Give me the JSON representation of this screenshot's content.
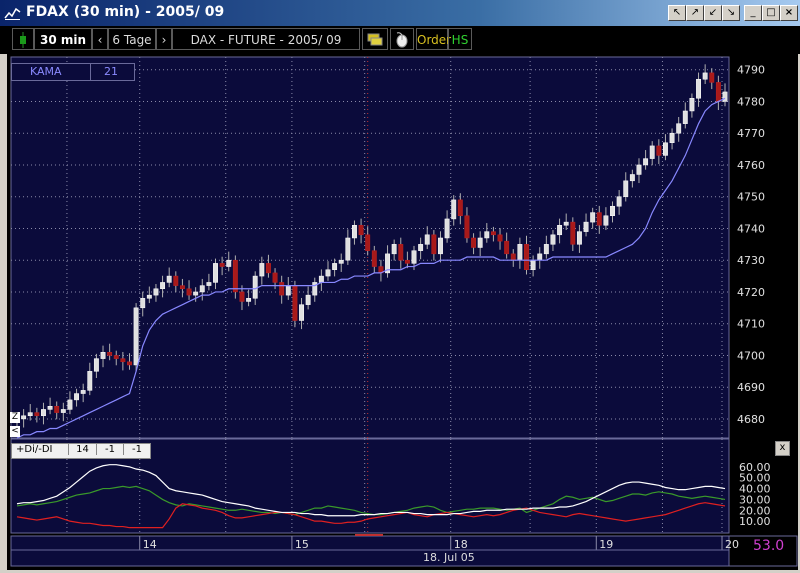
{
  "window": {
    "title": "FDAX  (30 min) - 2005/ 09",
    "buttons": [
      "↖",
      "↗",
      "↙",
      "↘",
      "_",
      "□",
      "×"
    ]
  },
  "toolbar": {
    "timeframe": "30 min",
    "prev": "‹",
    "range": "6 Tage",
    "next": "›",
    "instrument": "DAX - FUTURE - 2005/ 09",
    "order_label": "Order",
    "hs_label": "HS"
  },
  "indicator_box": {
    "name": "KAMA",
    "period": "21"
  },
  "lower_box": {
    "name": "+Di/-DI",
    "p1": "14",
    "p2": "-1",
    "p3": "-1"
  },
  "lower_close": "x",
  "left_tools": [
    "Z",
    "<"
  ],
  "price_axis": [
    "4790",
    "4780",
    "4770",
    "4760",
    "4750",
    "4740",
    "4730",
    "4720",
    "4710",
    "4700",
    "4690",
    "4680"
  ],
  "dmi_axis": [
    "60.00",
    "50.00",
    "40.00",
    "30.00",
    "20.00",
    "10.00"
  ],
  "x_labels": [
    "14",
    "15",
    "18",
    "19",
    "20"
  ],
  "date_label": "18. Jul 05",
  "value_readout": "53.0",
  "colors": {
    "background": "#0b0b3b",
    "grid": "#8a8aa8",
    "day_line": "#c03030",
    "up_candle": "#e0e0e0",
    "down_candle": "#a81a1a",
    "kama": "#8888ff",
    "plus_di": "#3a9a2a",
    "minus_di": "#e02020",
    "adx": "#ffffff",
    "readout": "#d040d0"
  },
  "chart_data": {
    "type": "candlestick",
    "price": {
      "ylim": [
        4674,
        4794
      ],
      "close": [
        4680,
        4681,
        4682,
        4681,
        4683,
        4684,
        4682,
        4683,
        4686,
        4688,
        4689,
        4695,
        4699,
        4701,
        4700,
        4699,
        4698,
        4697,
        4715,
        4718,
        4719,
        4721,
        4723,
        4725,
        4722,
        4721,
        4719,
        4720,
        4722,
        4723,
        4729,
        4728,
        4730,
        4720,
        4717,
        4718,
        4725,
        4729,
        4726,
        4723,
        4719,
        4722,
        4711,
        4716,
        4719,
        4723,
        4725,
        4727,
        4729,
        4730,
        4737,
        4741,
        4738,
        4733,
        4728,
        4726,
        4732,
        4735,
        4730,
        4729,
        4733,
        4735,
        4738,
        4732,
        4737,
        4743,
        4749,
        4744,
        4737,
        4734,
        4737,
        4739,
        4738,
        4736,
        4732,
        4730,
        4735,
        4727,
        4730,
        4732,
        4735,
        4738,
        4741,
        4742,
        4735,
        4739,
        4742,
        4745,
        4741,
        4744,
        4747,
        4750,
        4755,
        4757,
        4760,
        4762,
        4766,
        4763,
        4767,
        4770,
        4773,
        4777,
        4781,
        4787,
        4789,
        4786,
        4780,
        4783
      ],
      "kama": [
        4674,
        4675,
        4675,
        4676,
        4676,
        4677,
        4677,
        4678,
        4679,
        4680,
        4681,
        4682,
        4683,
        4684,
        4685,
        4686,
        4687,
        4688,
        4695,
        4703,
        4708,
        4711,
        4713,
        4714,
        4715,
        4716,
        4717,
        4718,
        4719,
        4719,
        4720,
        4720,
        4721,
        4721,
        4721,
        4721,
        4721,
        4722,
        4722,
        4722,
        4722,
        4722,
        4722,
        4722,
        4722,
        4722,
        4723,
        4723,
        4723,
        4724,
        4724,
        4725,
        4725,
        4725,
        4726,
        4726,
        4727,
        4727,
        4727,
        4728,
        4728,
        4729,
        4729,
        4729,
        4730,
        4730,
        4730,
        4730,
        4731,
        4731,
        4731,
        4731,
        4731,
        4730,
        4730,
        4730,
        4730,
        4730,
        4730,
        4730,
        4730,
        4731,
        4731,
        4731,
        4731,
        4731,
        4731,
        4731,
        4731,
        4731,
        4732,
        4733,
        4734,
        4735,
        4737,
        4740,
        4745,
        4749,
        4752,
        4755,
        4759,
        4763,
        4768,
        4773,
        4777,
        4779,
        4780,
        4781
      ]
    },
    "dmi": {
      "ylim": [
        0,
        70
      ],
      "adx": [
        26,
        27,
        27,
        28,
        29,
        31,
        33,
        37,
        41,
        46,
        51,
        56,
        59,
        61,
        62,
        62,
        61,
        60,
        58,
        57,
        55,
        52,
        46,
        40,
        38,
        37,
        36,
        35,
        34,
        32,
        30,
        28,
        27,
        26,
        25,
        24,
        22,
        21,
        20,
        19,
        18,
        18,
        18,
        17,
        17,
        16,
        16,
        15,
        15,
        15,
        15,
        15,
        16,
        16,
        16,
        17,
        17,
        18,
        18,
        18,
        17,
        17,
        16,
        16,
        16,
        16,
        17,
        17,
        18,
        19,
        19,
        20,
        20,
        20,
        21,
        21,
        21,
        21,
        22,
        22,
        22,
        22,
        23,
        23,
        24,
        26,
        28,
        31,
        34,
        37,
        40,
        43,
        45,
        46,
        46,
        45,
        44,
        43,
        41,
        40,
        39,
        39,
        40,
        41,
        42,
        42,
        41,
        40
      ],
      "plus_di": [
        24,
        25,
        26,
        25,
        26,
        27,
        28,
        30,
        32,
        34,
        35,
        36,
        38,
        40,
        40,
        41,
        42,
        41,
        42,
        40,
        38,
        34,
        30,
        27,
        25,
        24,
        26,
        25,
        24,
        23,
        22,
        21,
        20,
        20,
        21,
        20,
        19,
        18,
        18,
        17,
        18,
        17,
        16,
        18,
        20,
        22,
        22,
        24,
        23,
        22,
        21,
        20,
        18,
        17,
        16,
        16,
        17,
        18,
        19,
        20,
        22,
        23,
        24,
        23,
        20,
        18,
        19,
        20,
        21,
        21,
        22,
        22,
        22,
        21,
        20,
        21,
        22,
        18,
        20,
        22,
        24,
        26,
        30,
        33,
        32,
        30,
        31,
        32,
        30,
        28,
        29,
        31,
        33,
        35,
        35,
        34,
        36,
        37,
        36,
        35,
        33,
        32,
        31,
        32,
        33,
        32,
        31,
        30
      ],
      "minus_di": [
        14,
        13,
        12,
        11,
        12,
        13,
        14,
        12,
        10,
        9,
        8,
        8,
        7,
        6,
        6,
        5,
        5,
        4,
        4,
        4,
        4,
        4,
        4,
        12,
        22,
        26,
        25,
        24,
        22,
        21,
        20,
        18,
        15,
        13,
        13,
        14,
        15,
        16,
        17,
        18,
        18,
        17,
        16,
        14,
        12,
        10,
        10,
        9,
        8,
        8,
        9,
        9,
        10,
        12,
        13,
        14,
        15,
        16,
        17,
        18,
        16,
        15,
        14,
        16,
        17,
        18,
        17,
        16,
        15,
        14,
        15,
        16,
        15,
        16,
        18,
        20,
        21,
        22,
        20,
        18,
        17,
        16,
        15,
        14,
        16,
        17,
        16,
        15,
        14,
        13,
        12,
        11,
        10,
        11,
        12,
        13,
        14,
        15,
        16,
        18,
        20,
        22,
        24,
        26,
        27,
        26,
        25,
        24
      ]
    },
    "x_ticks_index": [
      19,
      42,
      66,
      88,
      107
    ],
    "day_boundaries_index": [
      8,
      19,
      32,
      42,
      53,
      66,
      78,
      88,
      98,
      107
    ]
  }
}
